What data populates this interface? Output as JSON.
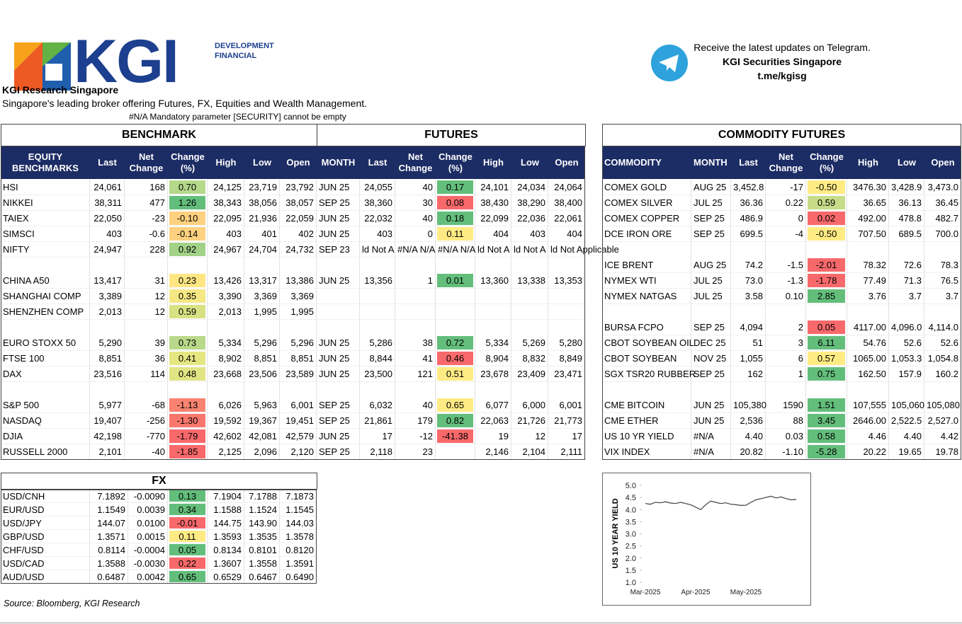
{
  "header": {
    "logo": "KGI",
    "logo_sub": [
      "DEVELOPMENT",
      "FINANCIAL"
    ],
    "org": "KGI Research Singapore",
    "tagline": "Singapore's leading broker offering Futures, FX, Equities and Wealth Management.",
    "error": "#N/A Mandatory parameter [SECURITY] cannot be empty"
  },
  "telegram": {
    "lines": [
      "Receive the latest updates on Telegram.",
      "KGI Securities Singapore",
      "t.me/kgisg"
    ]
  },
  "benchmark": {
    "title": "BENCHMARK",
    "futures_title": "FUTURES",
    "headers": [
      "EQUITY BENCHMARKS",
      "Last",
      "Net Change",
      "Change (%)",
      "High",
      "Low",
      "Open",
      "MONTH",
      "Last",
      "Net Change",
      "Change (%)",
      "High",
      "Low",
      "Open"
    ],
    "rows": [
      [
        "HSI",
        "24,061",
        "168",
        "0.70",
        "24,125",
        "23,719",
        "23,792",
        "JUN 25",
        "24,055",
        "40",
        "0.17",
        "24,101",
        "24,034",
        "24,064"
      ],
      [
        "NIKKEI",
        "38,311",
        "477",
        "1.26",
        "38,343",
        "38,056",
        "38,057",
        "SEP 25",
        "38,360",
        "30",
        "0.08",
        "38,430",
        "38,290",
        "38,400"
      ],
      [
        "TAIEX",
        "22,050",
        "-23",
        "-0.10",
        "22,095",
        "21,936",
        "22,059",
        "JUN 25",
        "22,032",
        "40",
        "0.18",
        "22,099",
        "22,036",
        "22,061"
      ],
      [
        "SIMSCI",
        "403",
        "-0.6",
        "-0.14",
        "403",
        "401",
        "402",
        "JUN 25",
        "403",
        "0",
        "0.11",
        "404",
        "403",
        "404"
      ],
      [
        "NIFTY",
        "24,947",
        "228",
        "0.92",
        "24,967",
        "24,704",
        "24,732",
        "SEP 23",
        "ld Not A",
        "#N/A N/A",
        "#N/A N/A",
        "ld Not A",
        "ld Not A",
        "ld Not Applicable"
      ],
      null,
      [
        "CHINA A50",
        "13,417",
        "31",
        "0.23",
        "13,426",
        "13,317",
        "13,386",
        "JUN 25",
        "13,356",
        "1",
        "0.01",
        "13,360",
        "13,338",
        "13,353"
      ],
      [
        "SHANGHAI COMP",
        "3,389",
        "12",
        "0.35",
        "3,390",
        "3,369",
        "3,369",
        null,
        null,
        null,
        null,
        null,
        null,
        null
      ],
      [
        "SHENZHEN COMP",
        "2,013",
        "12",
        "0.59",
        "2,013",
        "1,995",
        "1,995",
        null,
        null,
        null,
        null,
        null,
        null,
        null
      ],
      null,
      [
        "EURO STOXX 50",
        "5,290",
        "39",
        "0.73",
        "5,334",
        "5,296",
        "5,296",
        "JUN 25",
        "5,286",
        "38",
        "0.72",
        "5,334",
        "5,269",
        "5,280"
      ],
      [
        "FTSE 100",
        "8,851",
        "36",
        "0.41",
        "8,902",
        "8,851",
        "8,851",
        "JUN 25",
        "8,844",
        "41",
        "0.46",
        "8,904",
        "8,832",
        "8,849"
      ],
      [
        "DAX",
        "23,516",
        "114",
        "0.48",
        "23,668",
        "23,506",
        "23,589",
        "JUN 25",
        "23,500",
        "121",
        "0.51",
        "23,678",
        "23,409",
        "23,471"
      ],
      null,
      [
        "S&P 500",
        "5,977",
        "-68",
        "-1.13",
        "6,026",
        "5,963",
        "6,001",
        "SEP 25",
        "6,032",
        "40",
        "0.65",
        "6,077",
        "6,000",
        "6,001"
      ],
      [
        "NASDAQ",
        "19,407",
        "-256",
        "-1.30",
        "19,592",
        "19,367",
        "19,451",
        "SEP 25",
        "21,861",
        "179",
        "0.82",
        "22,063",
        "21,726",
        "21,773"
      ],
      [
        "DJIA",
        "42,198",
        "-770",
        "-1.79",
        "42,602",
        "42,081",
        "42,579",
        "JUN 25",
        "17",
        "-12",
        "-41.38",
        "19",
        "12",
        "17"
      ],
      [
        "RUSSELL 2000",
        "2,101",
        "-40",
        "-1.85",
        "2,125",
        "2,096",
        "2,120",
        "SEP 25",
        "2,118",
        "23",
        null,
        "2,146",
        "2,104",
        "2,111"
      ]
    ],
    "change_colors": [
      [
        "#b5d88a",
        "#63be7b"
      ],
      [
        "#63be7b",
        "#f8696b"
      ],
      [
        "#fdd17f",
        "#63be7b"
      ],
      [
        "#fdd17f",
        "#ffeb84"
      ],
      [
        "#a2d188",
        null
      ],
      null,
      [
        "#ffe683",
        "#63be7b"
      ],
      [
        "#f5e884",
        null
      ],
      [
        "#d8e283",
        null
      ],
      null,
      [
        "#b9d98a",
        "#63be7b"
      ],
      [
        "#e6e683",
        "#f8696b"
      ],
      [
        "#e1e483",
        "#ffeb84"
      ],
      null,
      [
        "#f98370",
        "#ffeb84"
      ],
      [
        "#f8776d",
        "#63be7b"
      ],
      [
        "#f8696b",
        "#f8696b"
      ],
      [
        "#f8696b",
        null
      ]
    ]
  },
  "commodity": {
    "title": "COMMODITY FUTURES",
    "headers": [
      "COMMODITY",
      "MONTH",
      "Last",
      "Net Change",
      "Change (%)",
      "High",
      "Low",
      "Open"
    ],
    "rows": [
      [
        "COMEX GOLD",
        "AUG 25",
        "3,452.8",
        "-17",
        "-0.50",
        "3476.30",
        "3,428.9",
        "3,473.0"
      ],
      [
        "COMEX SILVER",
        "JUL 25",
        "36.36",
        "0.22",
        "0.59",
        "36.65",
        "36.13",
        "36.45"
      ],
      [
        "COMEX COPPER",
        "SEP 25",
        "486.9",
        "0",
        "0.02",
        "492.00",
        "478.8",
        "482.7"
      ],
      [
        "DCE IRON ORE",
        "SEP 25",
        "699.5",
        "-4",
        "-0.50",
        "707.50",
        "689.5",
        "700.0"
      ],
      null,
      [
        "ICE BRENT",
        "AUG 25",
        "74.2",
        "-1.5",
        "-2.01",
        "78.32",
        "72.6",
        "78.3"
      ],
      [
        "NYMEX WTI",
        "JUL 25",
        "73.0",
        "-1.3",
        "-1.78",
        "77.49",
        "71.3",
        "76.5"
      ],
      [
        "NYMEX NATGAS",
        "JUL 25",
        "3.58",
        "0.10",
        "2.85",
        "3.76",
        "3.7",
        "3.7"
      ],
      null,
      [
        "BURSA FCPO",
        "SEP 25",
        "4,094",
        "2",
        "0.05",
        "4117.00",
        "4,096.0",
        "4,114.0"
      ],
      [
        "CBOT SOYBEAN OIL",
        "DEC 25",
        "51",
        "3",
        "6.11",
        "54.76",
        "52.6",
        "52.6"
      ],
      [
        "CBOT SOYBEAN",
        "NOV 25",
        "1,055",
        "6",
        "0.57",
        "1065.00",
        "1,053.3",
        "1,054.8"
      ],
      [
        "SGX TSR20 RUBBER",
        "SEP 25",
        "162",
        "1",
        "0.75",
        "162.50",
        "157.9",
        "160.2"
      ],
      null,
      [
        "CME BITCOIN",
        "JUN 25",
        "105,380",
        "1590",
        "1.51",
        "107,555",
        "105,060",
        "105,080"
      ],
      [
        "CME ETHER",
        "JUN 25",
        "2,536",
        "88",
        "3.45",
        "2646.00",
        "2,522.5",
        "2,527.0"
      ],
      [
        "US 10 YR YIELD",
        "#N/A",
        "4.40",
        "0.03",
        "0.58",
        "4.46",
        "4.40",
        "4.42"
      ],
      [
        "VIX INDEX",
        "#N/A",
        "20.82",
        "-1.10",
        "-5.28",
        "20.22",
        "19.65",
        "19.78"
      ]
    ],
    "change_colors": [
      "#ffeb84",
      "#c6dc88",
      "#f8696b",
      "#ffeb84",
      null,
      "#f8696b",
      "#f8696b",
      "#63be7b",
      null,
      "#f8696b",
      "#63be7b",
      "#ffeb84",
      "#63be7b",
      null,
      "#63be7b",
      "#63be7b",
      "#63be7b",
      "#63be7b"
    ]
  },
  "fx": {
    "title": "FX",
    "rows": [
      [
        "USD/CNH",
        "7.1892",
        "-0.0090",
        "0.13",
        "7.1904",
        "7.1788",
        "7.1873"
      ],
      [
        "EUR/USD",
        "1.1549",
        "0.0039",
        "0.34",
        "1.1588",
        "1.1524",
        "1.1545"
      ],
      [
        "USD/JPY",
        "144.07",
        "0.0100",
        "-0.01",
        "144.75",
        "143.90",
        "144.03"
      ],
      [
        "GBP/USD",
        "1.3571",
        "0.0015",
        "0.11",
        "1.3593",
        "1.3535",
        "1.3578"
      ],
      [
        "CHF/USD",
        "0.8114",
        "-0.0004",
        "0.05",
        "0.8134",
        "0.8101",
        "0.8120"
      ],
      [
        "USD/CAD",
        "1.3588",
        "-0.0030",
        "0.22",
        "1.3607",
        "1.3558",
        "1.3591"
      ],
      [
        "AUD/USD",
        "0.6487",
        "0.0042",
        "0.65",
        "0.6529",
        "0.6467",
        "0.6490"
      ]
    ],
    "change_colors": [
      "#63be7b",
      "#63be7b",
      "#f8696b",
      "#ffeb84",
      "#63be7b",
      "#f8696b",
      "#63be7b"
    ]
  },
  "source": "Source: Bloomberg, KGI Research",
  "chart_data": {
    "type": "line",
    "y_label": "US 10 YEAR YIELD",
    "categories": [
      "Mar-2025",
      null,
      null,
      null,
      null,
      null,
      null,
      null,
      null,
      null,
      "Apr-2025",
      null,
      null,
      null,
      null,
      null,
      null,
      null,
      null,
      null,
      "May-2025",
      null,
      null,
      null,
      null,
      null,
      null,
      null,
      null,
      null,
      null
    ],
    "values": [
      4.25,
      4.22,
      4.3,
      4.28,
      4.32,
      4.27,
      4.25,
      4.3,
      4.25,
      4.2,
      4.1,
      4.0,
      4.2,
      4.35,
      4.3,
      4.25,
      4.28,
      4.22,
      4.2,
      4.17,
      4.18,
      4.3,
      4.4,
      4.45,
      4.5,
      4.55,
      4.48,
      4.52,
      4.45,
      4.4,
      4.42
    ],
    "color": "#404040",
    "ylim": [
      1,
      5
    ],
    "yticks": [
      {
        "value": 1,
        "label": "1.0"
      },
      {
        "value": 1.5,
        "label": "1.5"
      },
      {
        "value": 2,
        "label": "2.0"
      },
      {
        "value": 2.5,
        "label": "2.5"
      },
      {
        "value": 3,
        "label": "3.0"
      },
      {
        "value": 3.5,
        "label": "3.5"
      },
      {
        "value": 4,
        "label": "4.0"
      },
      {
        "value": 4.5,
        "label": "4.5"
      },
      {
        "value": 5,
        "label": "5.0"
      }
    ]
  }
}
